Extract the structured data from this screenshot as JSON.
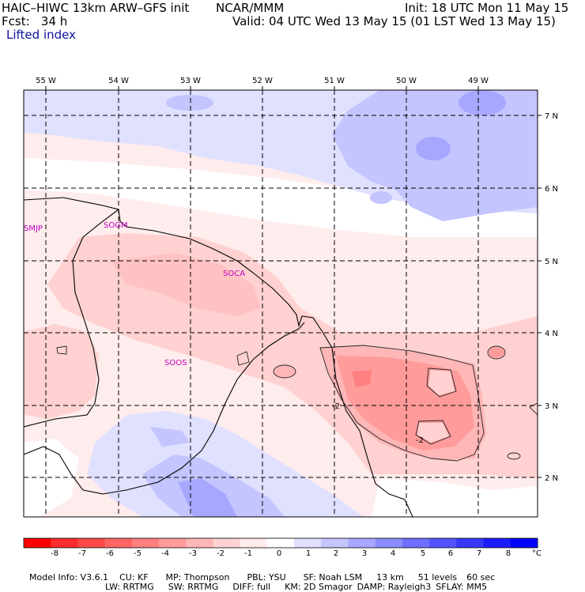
{
  "header": {
    "title_left": "HAIC–HIWC 13km ARW–GFS init",
    "agency": "NCAR/MMM",
    "init": "Init: 18 UTC Mon 11 May 15",
    "fcst": "Fcst:   34 h",
    "valid": "Valid: 04 UTC Wed 13 May 15 (01 LST Wed 13 May 15)",
    "field": "Lifted index"
  },
  "axes": {
    "lon_labels": [
      "55 W",
      "54 W",
      "53 W",
      "52 W",
      "51 W",
      "50 W",
      "49 W"
    ],
    "lat_labels": [
      "7 N",
      "6 N",
      "5 N",
      "4 N",
      "3 N",
      "2 N"
    ]
  },
  "place_labels": [
    "SMJP",
    "SOGM",
    "SOCA",
    "SOOS"
  ],
  "contour_labels": [
    "-2",
    "-2"
  ],
  "colorbar": {
    "colors": [
      "#ff0000",
      "#ff2d2d",
      "#ff4a4a",
      "#ff6565",
      "#ff8080",
      "#ff9b9b",
      "#ffb6b6",
      "#ffd1d1",
      "#ffecec",
      "#ffffff",
      "#e0e0ff",
      "#c4c4ff",
      "#a7a7ff",
      "#8c8cff",
      "#6f6fff",
      "#5353ff",
      "#3737ff",
      "#1b1bff",
      "#0000ff"
    ],
    "tick_labels": [
      "-8",
      "-7",
      "-6",
      "-5",
      "-4",
      "-3",
      "-2",
      "-1",
      "0",
      "1",
      "2",
      "3",
      "4",
      "5",
      "6",
      "7",
      "8"
    ],
    "unit": "°C"
  },
  "footer": {
    "line1": [
      "Model Info: V3.6.1",
      "CU: KF",
      "MP: Thompson",
      "PBL: YSU",
      "SF: Noah LSM",
      "13 km",
      "51 levels",
      "60 sec"
    ],
    "line2": [
      "LW: RRTMG",
      "SW: RRTMG",
      "DIFF: full",
      "KM: 2D Smagor",
      "DAMP: Rayleigh3",
      "SFLAY: MM5"
    ]
  }
}
